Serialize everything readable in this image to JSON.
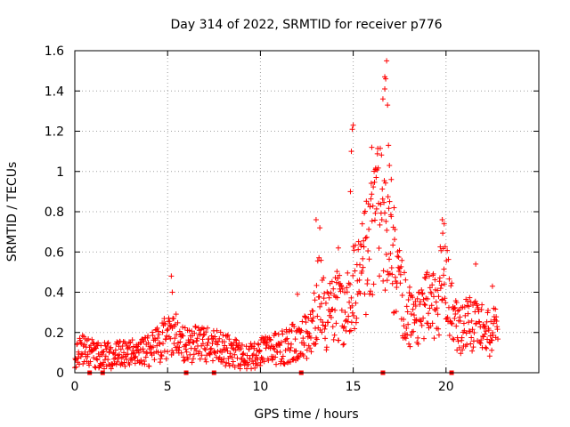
{
  "chart_data": {
    "type": "scatter",
    "title": "Day 314 of 2022, SRMTID for receiver p776",
    "xlabel": "GPS time / hours",
    "ylabel": "SRMTID / TECUs",
    "xlim": [
      0,
      25
    ],
    "ylim": [
      0,
      1.6
    ],
    "xticks": [
      "0",
      "5",
      "10",
      "15",
      "20"
    ],
    "yticks": [
      "0",
      "0.2",
      "0.4",
      "0.6",
      "0.8",
      "1",
      "1.2",
      "1.4",
      "1.6"
    ],
    "grid": true,
    "marker": "plus",
    "marker_color": "#ff0000",
    "trend": [
      [
        0.0,
        0.1
      ],
      [
        0.5,
        0.11
      ],
      [
        1.0,
        0.1
      ],
      [
        1.5,
        0.09
      ],
      [
        2.0,
        0.08
      ],
      [
        2.5,
        0.09
      ],
      [
        3.0,
        0.09
      ],
      [
        3.5,
        0.1
      ],
      [
        4.0,
        0.11
      ],
      [
        4.5,
        0.14
      ],
      [
        5.0,
        0.18
      ],
      [
        5.3,
        0.2
      ],
      [
        5.7,
        0.16
      ],
      [
        6.0,
        0.13
      ],
      [
        6.5,
        0.15
      ],
      [
        7.0,
        0.14
      ],
      [
        7.5,
        0.13
      ],
      [
        8.0,
        0.12
      ],
      [
        8.5,
        0.1
      ],
      [
        9.0,
        0.08
      ],
      [
        9.5,
        0.08
      ],
      [
        10.0,
        0.1
      ],
      [
        10.5,
        0.11
      ],
      [
        11.0,
        0.12
      ],
      [
        11.5,
        0.14
      ],
      [
        12.0,
        0.16
      ],
      [
        12.5,
        0.18
      ],
      [
        13.0,
        0.3
      ],
      [
        13.2,
        0.45
      ],
      [
        13.5,
        0.25
      ],
      [
        14.0,
        0.35
      ],
      [
        14.5,
        0.28
      ],
      [
        14.8,
        0.42
      ],
      [
        15.2,
        0.45
      ],
      [
        15.6,
        0.55
      ],
      [
        16.0,
        0.65
      ],
      [
        16.3,
        0.75
      ],
      [
        16.6,
        0.8
      ],
      [
        17.0,
        0.55
      ],
      [
        17.5,
        0.4
      ],
      [
        18.0,
        0.28
      ],
      [
        18.5,
        0.25
      ],
      [
        19.0,
        0.35
      ],
      [
        19.5,
        0.33
      ],
      [
        19.9,
        0.5
      ],
      [
        20.3,
        0.3
      ],
      [
        20.8,
        0.22
      ],
      [
        21.3,
        0.25
      ],
      [
        21.8,
        0.22
      ],
      [
        22.3,
        0.2
      ],
      [
        22.8,
        0.2
      ]
    ],
    "spikes": [
      [
        5.2,
        0.48
      ],
      [
        5.25,
        0.4
      ],
      [
        12.0,
        0.39
      ],
      [
        13.0,
        0.76
      ],
      [
        13.2,
        0.72
      ],
      [
        14.2,
        0.62
      ],
      [
        14.9,
        1.1
      ],
      [
        14.95,
        1.21
      ],
      [
        15.0,
        1.23
      ],
      [
        14.85,
        0.9
      ],
      [
        16.0,
        1.12
      ],
      [
        16.2,
        1.01
      ],
      [
        16.6,
        1.36
      ],
      [
        16.7,
        1.47
      ],
      [
        16.75,
        1.46
      ],
      [
        16.8,
        1.55
      ],
      [
        16.85,
        1.33
      ],
      [
        16.7,
        1.41
      ],
      [
        16.9,
        1.13
      ],
      [
        16.95,
        1.03
      ],
      [
        17.05,
        0.96
      ],
      [
        17.2,
        0.82
      ],
      [
        19.8,
        0.76
      ],
      [
        19.9,
        0.74
      ],
      [
        21.6,
        0.54
      ],
      [
        22.5,
        0.43
      ]
    ],
    "axis_markers": [
      0.8,
      1.5,
      6.0,
      7.5,
      12.2,
      16.6,
      20.3
    ]
  }
}
